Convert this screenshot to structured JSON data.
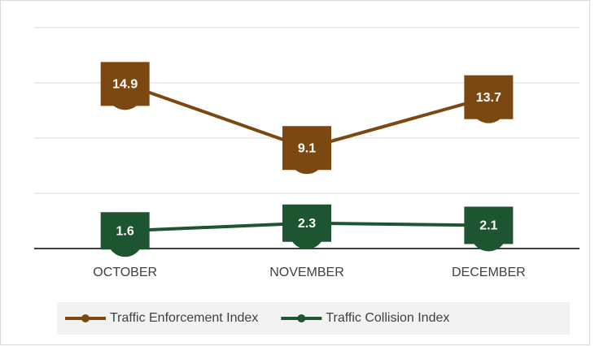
{
  "chart_data": {
    "type": "line",
    "categories": [
      "OCTOBER",
      "NOVEMBER",
      "DECEMBER"
    ],
    "series": [
      {
        "name": "Traffic Enforcement Index",
        "color": "#7a4810",
        "values": [
          14.9,
          9.1,
          13.7
        ]
      },
      {
        "name": "Traffic Collision Index",
        "color": "#1d5530",
        "values": [
          1.6,
          2.3,
          2.1
        ]
      }
    ],
    "ylim": [
      0,
      20
    ],
    "yticks": [
      0,
      5,
      10,
      15,
      20
    ],
    "grid": true,
    "legend": "bottom"
  }
}
